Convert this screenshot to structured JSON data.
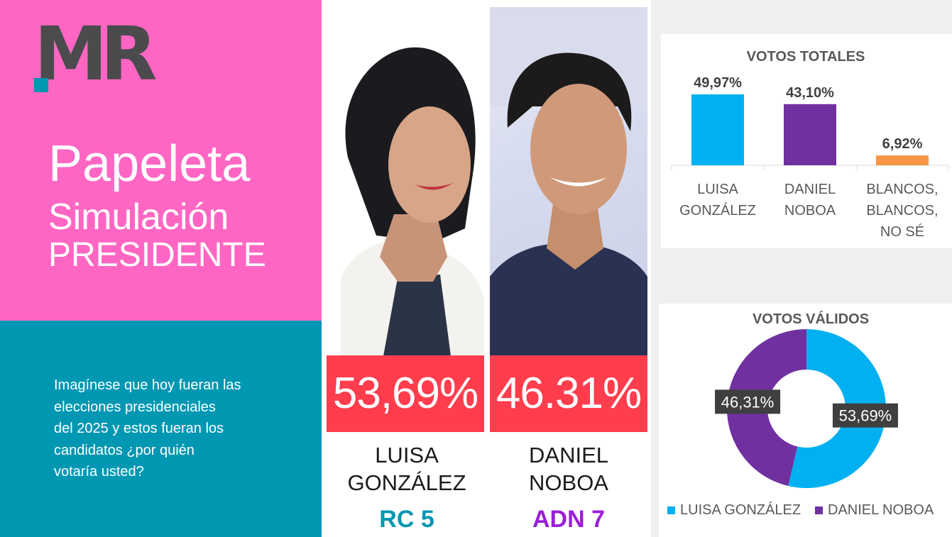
{
  "brand": {
    "logo_text": "MR",
    "logo_accent": "#0097b2",
    "logo_color": "#4b4b4d"
  },
  "header": {
    "title_line1": "Papeleta",
    "title_line2": "Simulación",
    "title_line3": "PRESIDENTE"
  },
  "question": "Imagínese que hoy fueran las\nelecciones presidenciales\ndel 2025 y estos fueran los\ncandidatos  ¿por quién\nvotaría usted?",
  "colors": {
    "pink": "#ff66c4",
    "teal": "#0097b2",
    "red": "#ff3d4d",
    "blue": "#00b0f0",
    "purple": "#7030a0",
    "orange": "#f79646"
  },
  "candidates": [
    {
      "name": "LUISA\nGONZÁLEZ",
      "percent": "53,69%",
      "party": "RC 5"
    },
    {
      "name": "DANIEL\nNOBOA",
      "percent": "46.31%",
      "party": "ADN 7"
    }
  ],
  "chart_data": [
    {
      "type": "bar",
      "title": "VOTOS TOTALES",
      "categories": [
        [
          "LUISA",
          "GONZÁLEZ"
        ],
        [
          "DANIEL",
          "NOBOA"
        ],
        [
          "BLANCOS,",
          "BLANCOS,",
          "NO SÉ"
        ]
      ],
      "values": [
        49.97,
        43.1,
        6.92
      ],
      "data_labels": [
        "49,97%",
        "43,10%",
        "6,92%"
      ],
      "colors": [
        "#00b0f0",
        "#7030a0",
        "#f79646"
      ],
      "ylim": [
        0,
        55
      ],
      "grid": false
    },
    {
      "type": "pie",
      "title": "VOTOS VÁLIDOS",
      "labels": [
        "LUISA GONZÁLEZ",
        "DANIEL NOBOA"
      ],
      "values": [
        53.69,
        46.31
      ],
      "data_labels": [
        "53,69%",
        "46,31%"
      ],
      "colors": [
        "#00b0f0",
        "#7030a0"
      ],
      "legend": "bottom"
    }
  ]
}
